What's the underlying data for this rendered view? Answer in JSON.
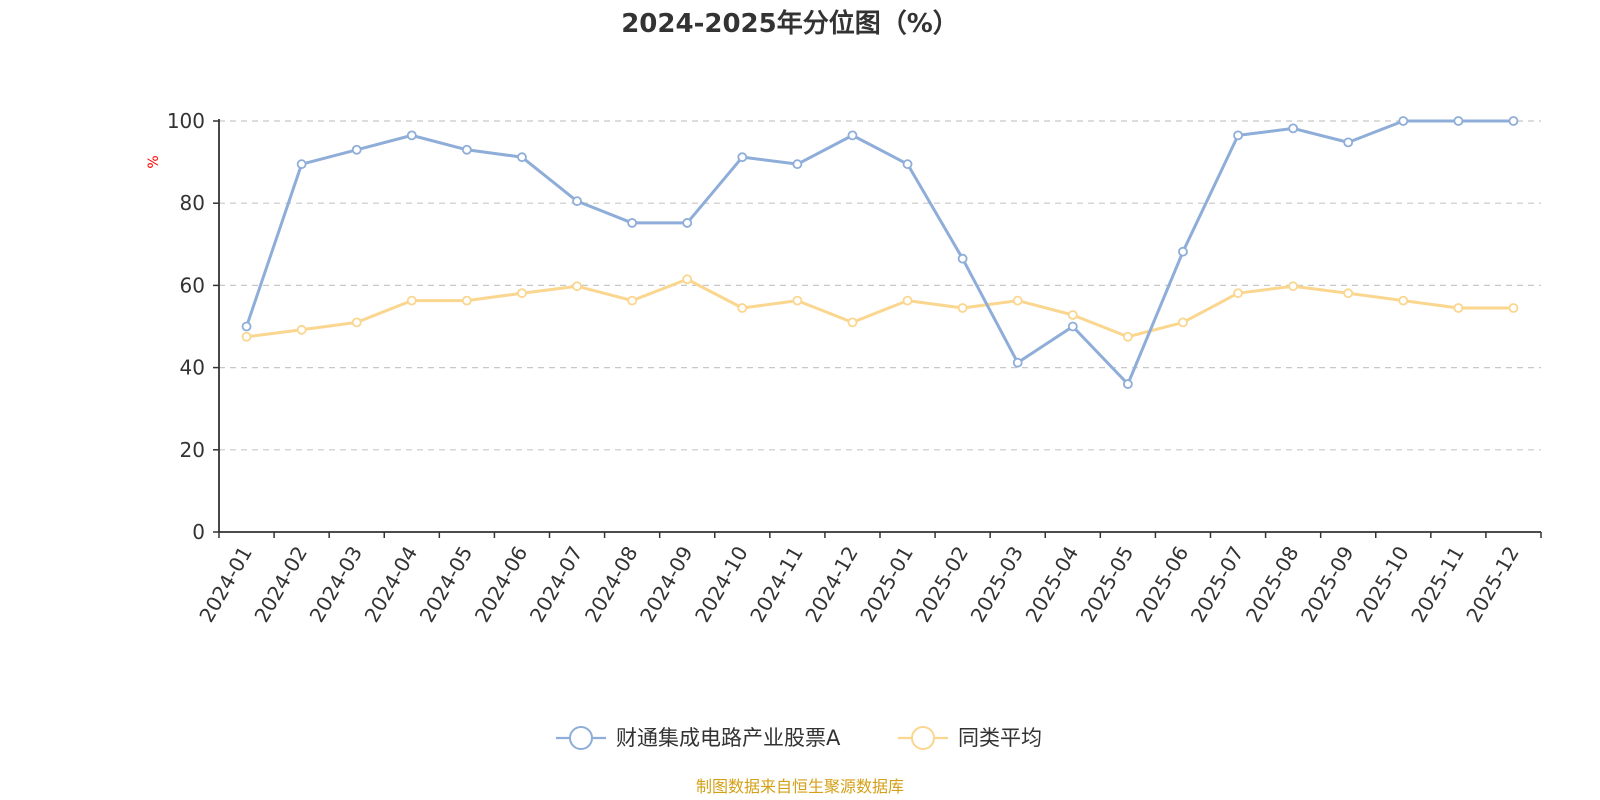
{
  "chart_data": {
    "type": "line",
    "title": "2024-2025年分位图（%）",
    "ylabel": "%",
    "ylim": [
      0,
      100
    ],
    "yticks": [
      0,
      20,
      40,
      60,
      80,
      100
    ],
    "grid": true,
    "legend_position": "bottom-center",
    "categories": [
      "2024-01",
      "2024-02",
      "2024-03",
      "2024-04",
      "2024-05",
      "2024-06",
      "2024-07",
      "2024-08",
      "2024-09",
      "2024-10",
      "2024-11",
      "2024-12",
      "2025-01",
      "2025-02",
      "2025-03",
      "2025-04",
      "2025-05",
      "2025-06",
      "2025-07",
      "2025-08",
      "2025-09",
      "2025-10",
      "2025-11",
      "2025-12"
    ],
    "series": [
      {
        "name": "财通集成电路产业股票A",
        "color": "#8eadd8",
        "values": [
          50.0,
          89.5,
          93.0,
          96.5,
          93.0,
          91.2,
          80.5,
          75.2,
          75.2,
          91.2,
          89.5,
          96.5,
          89.5,
          66.5,
          41.2,
          50.0,
          36.0,
          68.2,
          96.5,
          98.2,
          94.8,
          100,
          100,
          100
        ]
      },
      {
        "name": "同类平均",
        "color": "#fad68f",
        "values": [
          47.5,
          49.2,
          51.0,
          56.3,
          56.3,
          58.1,
          59.8,
          56.3,
          61.5,
          54.5,
          56.3,
          51.0,
          56.3,
          54.5,
          56.3,
          52.8,
          47.5,
          51.0,
          58.1,
          59.8,
          58.1,
          56.3,
          54.5,
          54.5
        ]
      }
    ]
  },
  "footer": {
    "source": "制图数据来自恒生聚源数据库"
  }
}
